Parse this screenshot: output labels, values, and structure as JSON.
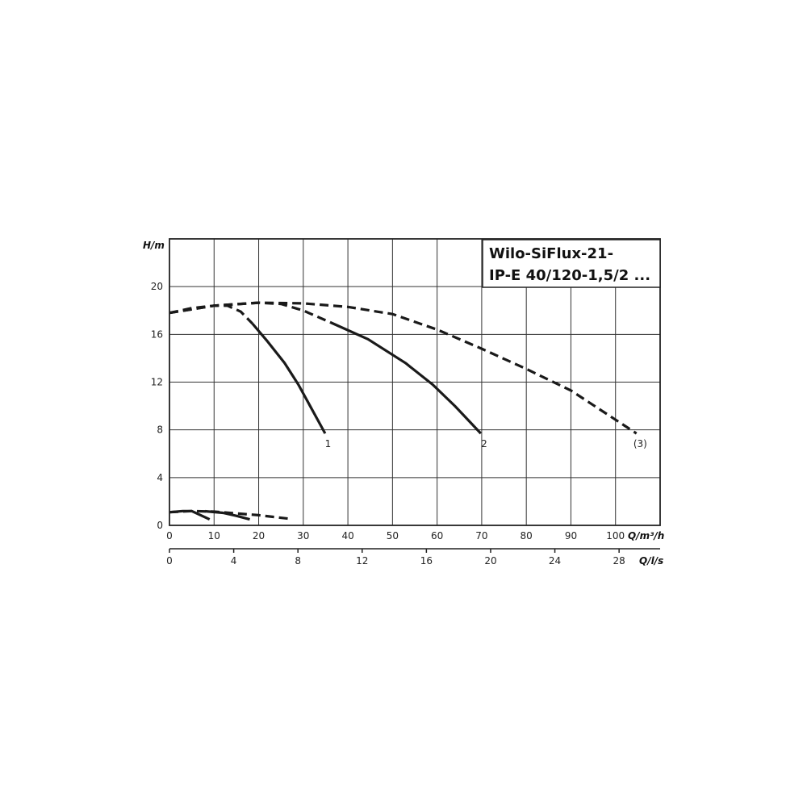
{
  "chart_data": {
    "type": "line",
    "title_lines": [
      "Wilo-SiFlux-21-",
      "IP-E 40/120-1,5/2 ..."
    ],
    "ylabel": "H/m",
    "xlabel": "Q/m³/h",
    "x2label": "Q/l/s",
    "xlim": [
      0,
      110
    ],
    "ylim": [
      0,
      24
    ],
    "x_ticks": [
      0,
      10,
      20,
      30,
      40,
      50,
      60,
      70,
      80,
      90,
      100
    ],
    "y_ticks": [
      0,
      4,
      8,
      12,
      16,
      20
    ],
    "x2_ticks": [
      0,
      4,
      8,
      12,
      16,
      20,
      24,
      28
    ],
    "grid": true,
    "series": [
      {
        "label": "1",
        "style": "dashed",
        "points": [
          [
            0,
            17.8
          ],
          [
            5,
            18.2
          ],
          [
            10,
            18.4
          ],
          [
            13,
            18.4
          ],
          [
            16,
            17.9
          ],
          [
            18.6,
            16.9
          ]
        ]
      },
      {
        "label": "1",
        "style": "solid",
        "points": [
          [
            18.6,
            16.9
          ],
          [
            22,
            15.4
          ],
          [
            25.8,
            13.6
          ],
          [
            28.9,
            11.8
          ],
          [
            31.9,
            9.75
          ],
          [
            34.9,
            7.7
          ]
        ]
      },
      {
        "label": "2",
        "style": "dashed",
        "points": [
          [
            0,
            17.8
          ],
          [
            10,
            18.4
          ],
          [
            20,
            18.65
          ],
          [
            25,
            18.55
          ],
          [
            30,
            18.0
          ],
          [
            36.1,
            17.0
          ]
        ]
      },
      {
        "label": "2",
        "style": "solid",
        "points": [
          [
            36.1,
            17.0
          ],
          [
            44.5,
            15.6
          ],
          [
            52.9,
            13.6
          ],
          [
            59,
            11.8
          ],
          [
            64,
            10.0
          ],
          [
            69.8,
            7.7
          ]
        ]
      },
      {
        "label": "(3)",
        "style": "dashed",
        "points": [
          [
            0,
            17.8
          ],
          [
            10,
            18.4
          ],
          [
            20,
            18.65
          ],
          [
            30,
            18.6
          ],
          [
            40,
            18.3
          ],
          [
            50,
            17.7
          ],
          [
            60,
            16.4
          ],
          [
            70,
            14.8
          ],
          [
            80,
            13.1
          ],
          [
            90,
            11.3
          ],
          [
            104.7,
            7.7
          ]
        ]
      },
      {
        "label": "",
        "style": "dashed",
        "points": [
          [
            0,
            1.1
          ],
          [
            5,
            1.2
          ],
          [
            10,
            1.15
          ],
          [
            15,
            1.0
          ],
          [
            20,
            0.85
          ],
          [
            27,
            0.55
          ]
        ]
      },
      {
        "label": "",
        "style": "solid",
        "points": [
          [
            0,
            1.1
          ],
          [
            3,
            1.2
          ],
          [
            5,
            1.2
          ],
          [
            7,
            0.85
          ],
          [
            9,
            0.5
          ]
        ]
      },
      {
        "label": "",
        "style": "solid",
        "points": [
          [
            8,
            1.18
          ],
          [
            12,
            1.05
          ],
          [
            15,
            0.8
          ],
          [
            18,
            0.5
          ]
        ]
      }
    ],
    "curve_labels": [
      {
        "text": "1",
        "x": 35,
        "y": 7.7
      },
      {
        "text": "2",
        "x": 70,
        "y": 7.7
      },
      {
        "text": "(3)",
        "x": 105,
        "y": 7.7
      }
    ]
  }
}
